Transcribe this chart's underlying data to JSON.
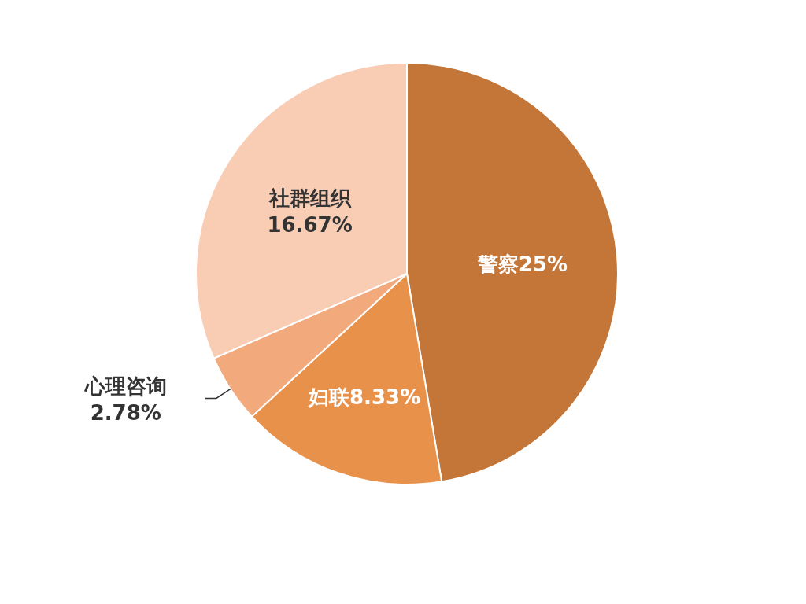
{
  "chart_data": {
    "type": "pie",
    "categories": [
      "警察",
      "妇联",
      "心理咨询",
      "社群组织"
    ],
    "values": [
      25,
      8.33,
      2.78,
      16.67
    ],
    "value_labels": [
      "25%",
      "8.33%",
      "2.78%",
      "16.67%"
    ],
    "colors": [
      "#c47639",
      "#e8914a",
      "#f2a97b",
      "#f9ccb4"
    ],
    "legend": false
  }
}
